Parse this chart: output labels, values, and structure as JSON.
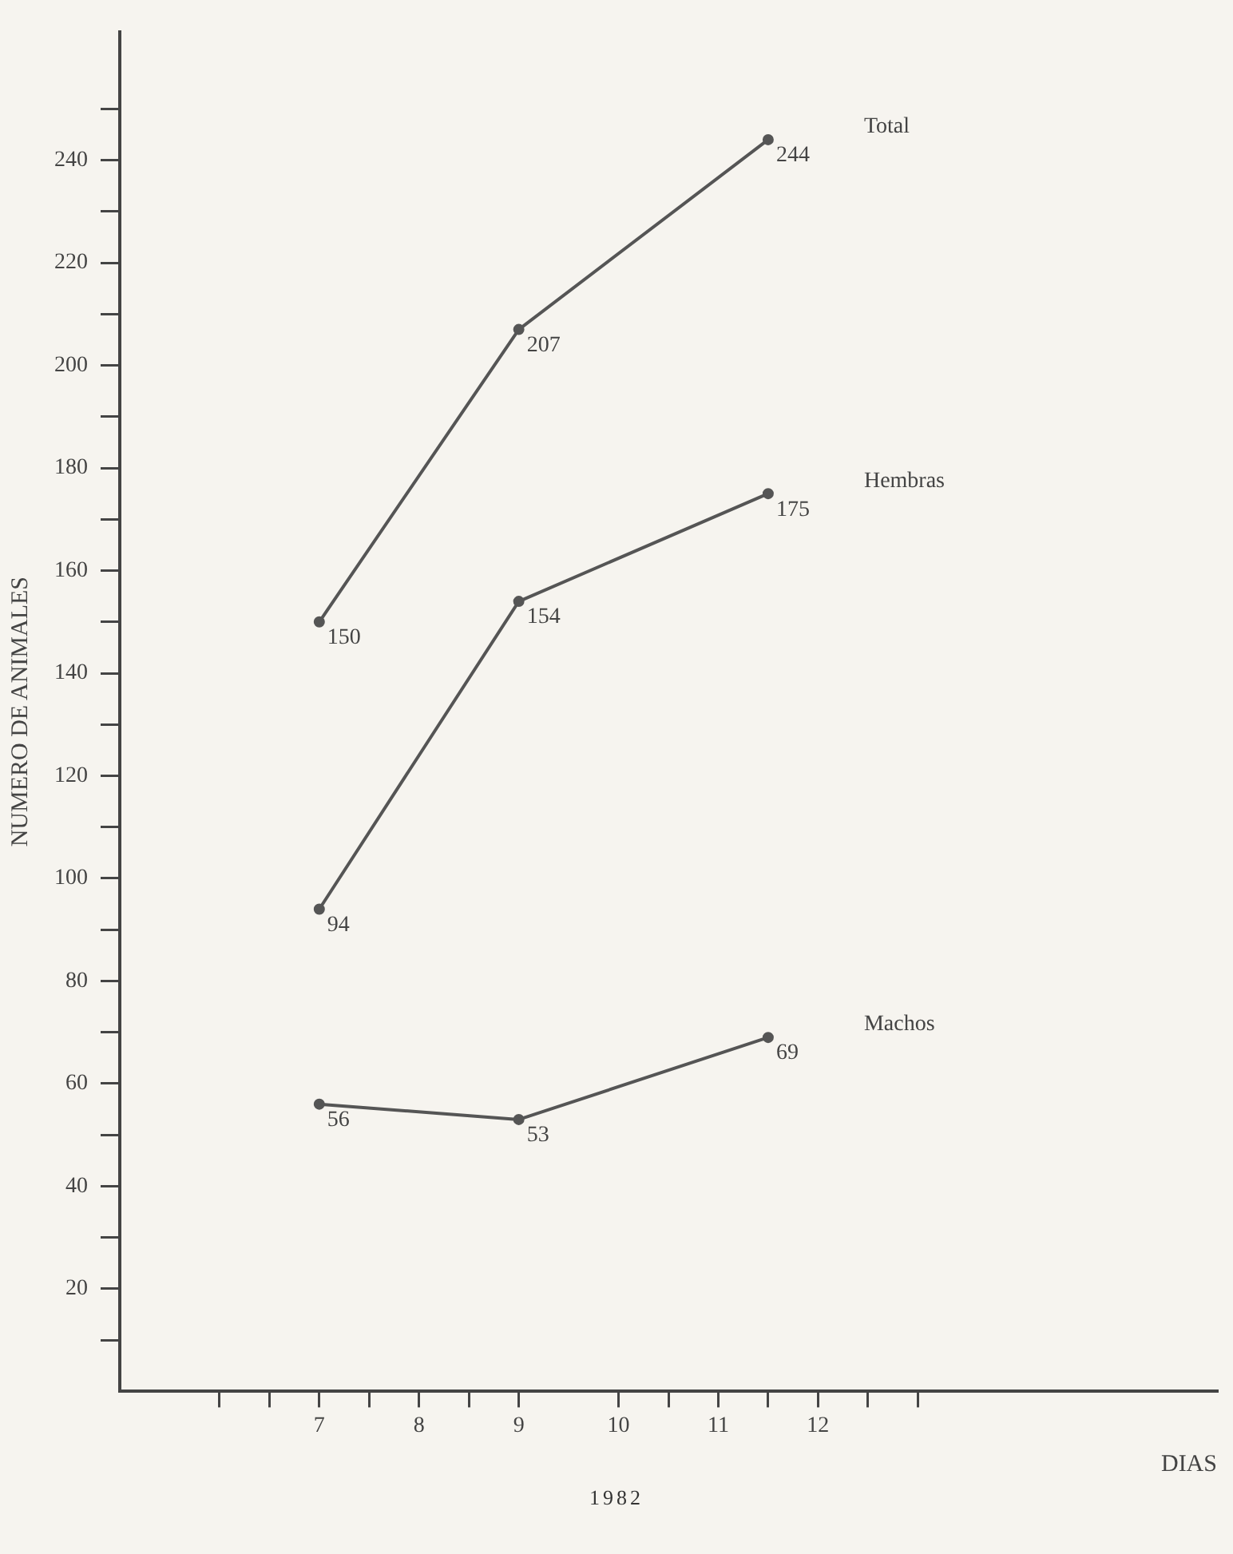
{
  "chart_data": {
    "type": "line",
    "xlabel": "DIAS",
    "ylabel": "NUMERO DE ANIMALES",
    "annotations": [
      "1982"
    ],
    "x": [
      7,
      9,
      11.5
    ],
    "series": [
      {
        "name": "Total",
        "color": "#555555",
        "values": [
          150,
          207,
          244
        ]
      },
      {
        "name": "Hembras",
        "color": "#555555",
        "values": [
          94,
          154,
          175
        ]
      },
      {
        "name": "Machos",
        "color": "#555555",
        "values": [
          56,
          53,
          69
        ]
      }
    ],
    "xlim": [
      5,
      16
    ],
    "xticks": [
      {
        "value": 6,
        "label": null
      },
      {
        "value": 6.5,
        "label": null
      },
      7,
      {
        "value": 7.5,
        "label": null
      },
      8,
      {
        "value": 8.5,
        "label": null
      },
      9,
      10,
      {
        "value": 10.5,
        "label": null
      },
      11,
      {
        "value": 11.5,
        "label": null
      },
      12,
      {
        "value": 12.5,
        "label": null
      },
      {
        "value": 13,
        "label": null
      }
    ],
    "ylim": [
      0,
      265
    ],
    "yticks": [
      {
        "value": 10,
        "label": null
      },
      20,
      {
        "value": 30,
        "label": null
      },
      40,
      {
        "value": 50,
        "label": null
      },
      60,
      {
        "value": 70,
        "label": null
      },
      80,
      {
        "value": 90,
        "label": null
      },
      100,
      {
        "value": 110,
        "label": null
      },
      120,
      {
        "value": 130,
        "label": null
      },
      140,
      {
        "value": 150,
        "label": null
      },
      160,
      {
        "value": 170,
        "label": null
      },
      180,
      {
        "value": 190,
        "label": null
      },
      200,
      {
        "value": 210,
        "label": null
      },
      220,
      {
        "value": 230,
        "label": null
      },
      240,
      {
        "value": 250,
        "label": null
      }
    ],
    "data_labels": true,
    "marker": "circle",
    "line_style": "solid",
    "grid": false,
    "legend": false
  }
}
